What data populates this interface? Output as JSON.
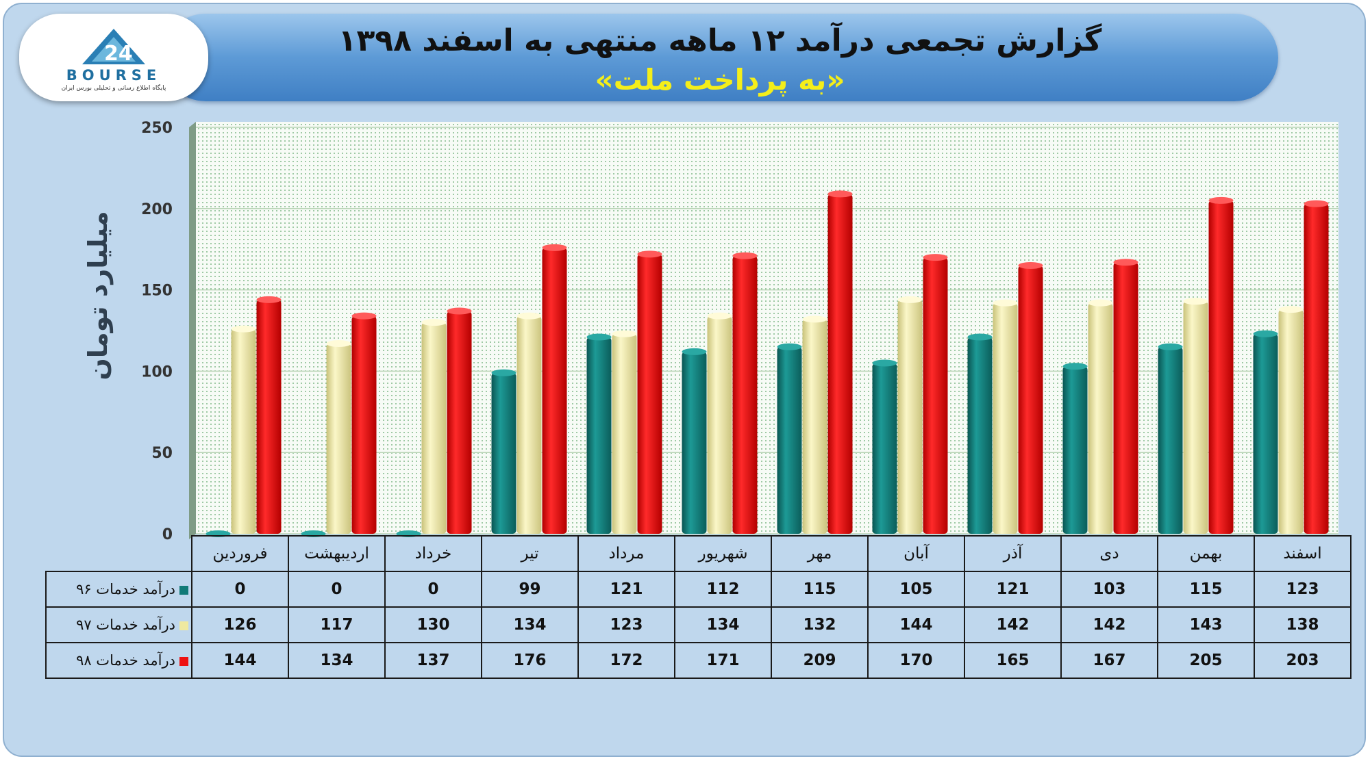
{
  "header": {
    "title": "گزارش تجمعی درآمد ۱۲ ماهه منتهی به اسفند ۱۳۹۸",
    "subtitle": "«به پرداخت ملت»"
  },
  "logo": {
    "word": "BOURSE",
    "caption": "پایگاه اطلاع رسانی و تحلیلی بورس ایران"
  },
  "chart_data": {
    "type": "bar",
    "ylabel": "میلیارد تومان",
    "xlabel": "",
    "ylim": [
      0,
      250
    ],
    "yticks": [
      "0",
      "50",
      "100",
      "150",
      "200",
      "250"
    ],
    "grid": true,
    "legend": "table-left",
    "categories": [
      "فروردین",
      "اردیبهشت",
      "خرداد",
      "تیر",
      "مرداد",
      "شهریور",
      "مهر",
      "آبان",
      "آذر",
      "دی",
      "بهمن",
      "اسفند"
    ],
    "series": [
      {
        "name": "درآمد خدمات ۹۶",
        "color": "#117a77",
        "values": [
          0,
          0,
          0,
          99,
          121,
          112,
          115,
          105,
          121,
          103,
          115,
          123
        ]
      },
      {
        "name": "درآمد خدمات ۹۷",
        "color": "#efe9a0",
        "values": [
          126,
          117,
          130,
          134,
          123,
          134,
          132,
          144,
          142,
          142,
          143,
          138
        ]
      },
      {
        "name": "درآمد خدمات ۹۸",
        "color": "#ee1111",
        "values": [
          144,
          134,
          137,
          176,
          172,
          171,
          209,
          170,
          165,
          167,
          205,
          203
        ]
      }
    ]
  }
}
